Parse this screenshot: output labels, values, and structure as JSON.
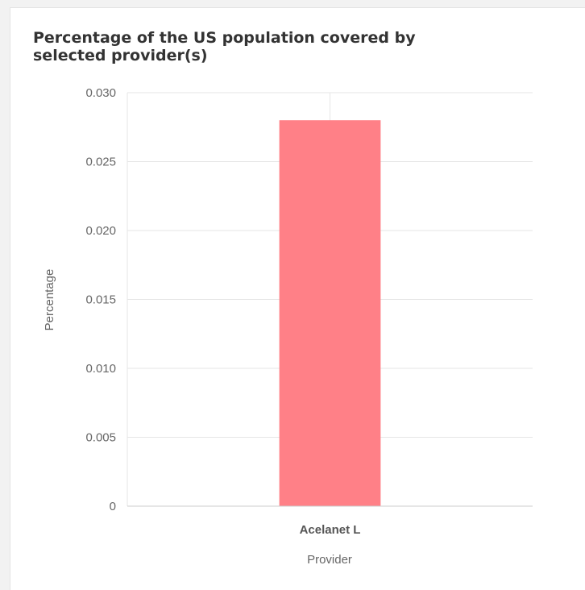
{
  "chart_data": {
    "type": "bar",
    "title": "Percentage of the US population covered by selected provider(s)",
    "categories": [
      "Acelanet L"
    ],
    "values": [
      0.028
    ],
    "xlabel": "Provider",
    "ylabel": "Percentage",
    "ylim": [
      0,
      0.03
    ],
    "yticks": [
      "0",
      "0.005",
      "0.010",
      "0.015",
      "0.020",
      "0.025",
      "0.030"
    ],
    "grid": true,
    "legend": "none",
    "bar_color": "#ff8087"
  }
}
